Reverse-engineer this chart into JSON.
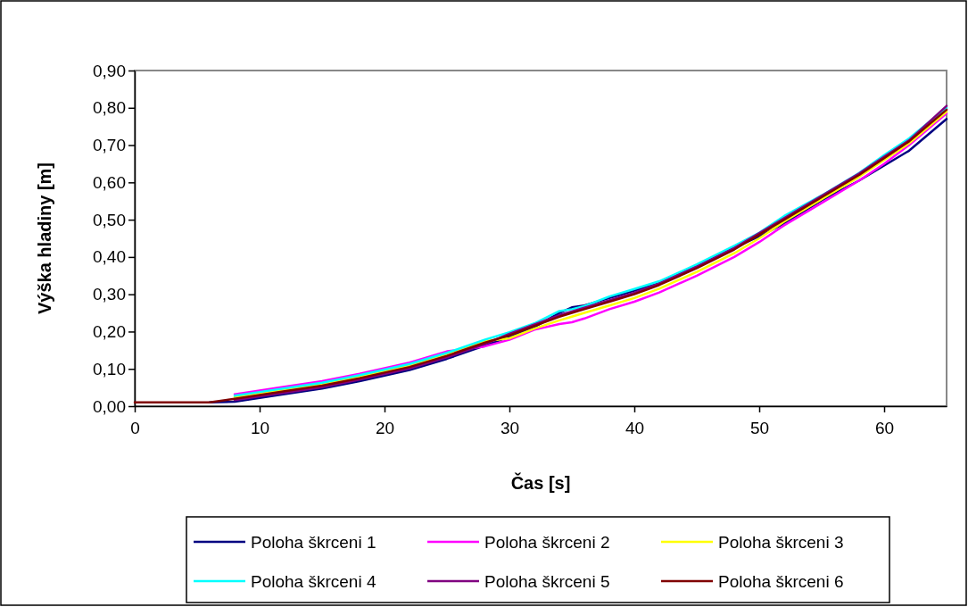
{
  "chart_data": {
    "type": "line",
    "xlabel": "Čas [s]",
    "ylabel": "Výška hladiny [m]",
    "x": [
      0,
      5,
      6,
      8,
      10,
      12,
      15,
      18,
      20,
      22,
      25,
      28,
      30,
      32,
      34,
      35,
      36,
      38,
      40,
      42,
      45,
      48,
      50,
      52,
      55,
      58,
      60,
      62,
      65
    ],
    "xlim": [
      0,
      65
    ],
    "xticks": [
      0,
      10,
      20,
      30,
      40,
      50,
      60
    ],
    "ylim": [
      0,
      0.9
    ],
    "yticks": [
      {
        "value": 0,
        "label": "0,00"
      },
      {
        "value": 0.1,
        "label": "0,10"
      },
      {
        "value": 0.2,
        "label": "0,20"
      },
      {
        "value": 0.3,
        "label": "0,30"
      },
      {
        "value": 0.4,
        "label": "0,40"
      },
      {
        "value": 0.5,
        "label": "0,50"
      },
      {
        "value": 0.6,
        "label": "0,60"
      },
      {
        "value": 0.7,
        "label": "0,70"
      },
      {
        "value": 0.8,
        "label": "0,80"
      },
      {
        "value": 0.9,
        "label": "0,90"
      }
    ],
    "grid": false,
    "legend": "bottom",
    "marker": "none",
    "line_style": "solid",
    "series": [
      {
        "name": "Poloha škrceni 1",
        "color": "#000080",
        "values": [
          null,
          null,
          0.01,
          0.012,
          0.022,
          0.032,
          0.047,
          0.067,
          0.082,
          0.097,
          0.127,
          0.162,
          0.186,
          0.212,
          0.25,
          0.265,
          0.27,
          0.29,
          0.31,
          0.33,
          0.375,
          0.425,
          0.455,
          0.49,
          0.552,
          0.605,
          0.645,
          0.685,
          0.77
        ]
      },
      {
        "name": "Poloha škrceni 2",
        "color": "#ff00ff",
        "values": [
          null,
          null,
          null,
          0.032,
          0.042,
          0.052,
          0.067,
          0.087,
          0.102,
          0.117,
          0.147,
          0.16,
          0.178,
          0.205,
          0.22,
          0.225,
          0.235,
          0.26,
          0.28,
          0.305,
          0.35,
          0.4,
          0.44,
          0.485,
          0.545,
          0.605,
          0.65,
          0.7,
          0.785
        ]
      },
      {
        "name": "Poloha škrceni 3",
        "color": "#ffff00",
        "values": [
          null,
          null,
          null,
          0.024,
          0.034,
          0.044,
          0.059,
          0.079,
          0.094,
          0.109,
          0.139,
          0.174,
          0.182,
          0.208,
          0.23,
          0.24,
          0.25,
          0.27,
          0.29,
          0.315,
          0.36,
          0.41,
          0.45,
          0.495,
          0.555,
          0.615,
          0.66,
          0.705,
          0.79
        ]
      },
      {
        "name": "Poloha škrceni 4",
        "color": "#00ffff",
        "values": [
          null,
          null,
          null,
          0.028,
          0.038,
          0.048,
          0.063,
          0.083,
          0.098,
          0.113,
          0.143,
          0.178,
          0.198,
          0.222,
          0.255,
          0.26,
          0.268,
          0.294,
          0.314,
          0.335,
          0.38,
          0.43,
          0.465,
          0.51,
          0.565,
          0.625,
          0.673,
          0.718,
          0.8
        ]
      },
      {
        "name": "Poloha škrceni 5",
        "color": "#800080",
        "values": [
          null,
          null,
          null,
          0.016,
          0.026,
          0.036,
          0.051,
          0.071,
          0.086,
          0.101,
          0.131,
          0.166,
          0.194,
          0.219,
          0.244,
          0.254,
          0.264,
          0.284,
          0.304,
          0.329,
          0.374,
          0.424,
          0.464,
          0.504,
          0.564,
          0.624,
          0.669,
          0.713,
          0.805
        ]
      },
      {
        "name": "Poloha škrceni 6",
        "color": "#800000",
        "values": [
          0.01,
          0.01,
          0.01,
          0.02,
          0.03,
          0.04,
          0.055,
          0.075,
          0.09,
          0.105,
          0.135,
          0.17,
          0.19,
          0.215,
          0.24,
          0.25,
          0.26,
          0.28,
          0.3,
          0.325,
          0.37,
          0.42,
          0.46,
          0.5,
          0.56,
          0.62,
          0.665,
          0.71,
          0.795
        ]
      }
    ]
  }
}
